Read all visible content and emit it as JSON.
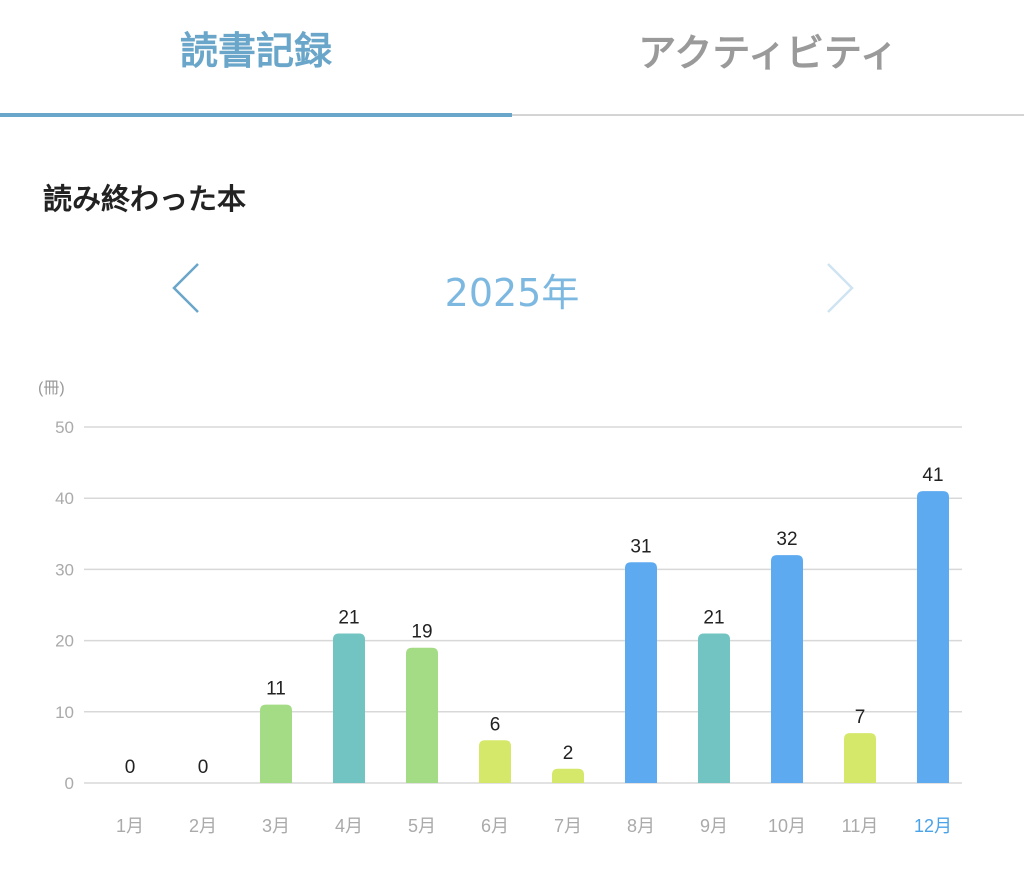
{
  "tabs": [
    {
      "label": "読書記録",
      "active": true
    },
    {
      "label": "アクティビティ",
      "active": false
    }
  ],
  "section_title": "読み終わった本",
  "year_nav": {
    "year_label": "2025年",
    "prev_icon": "chevron-left-icon",
    "next_icon": "chevron-right-icon"
  },
  "colors": {
    "accent": "#6aa6c9",
    "year": "#7db8e0",
    "green": "#a3dc85",
    "teal": "#72c4c2",
    "lime": "#d5e86a",
    "blue": "#5eaaf0",
    "highlight_label": "#4aa3e8"
  },
  "chart_data": {
    "type": "bar",
    "unit_label": "(冊)",
    "categories": [
      "1月",
      "2月",
      "3月",
      "4月",
      "5月",
      "6月",
      "7月",
      "8月",
      "9月",
      "10月",
      "11月",
      "12月"
    ],
    "values": [
      0,
      0,
      11,
      21,
      19,
      6,
      2,
      31,
      21,
      32,
      7,
      41
    ],
    "bar_colors": [
      "green",
      "green",
      "green",
      "teal",
      "green",
      "lime",
      "lime",
      "blue",
      "teal",
      "blue",
      "lime",
      "blue"
    ],
    "highlighted_category": "12月",
    "yticks": [
      0,
      10,
      20,
      30,
      40,
      50
    ],
    "ylim": [
      0,
      50
    ],
    "grid": true,
    "title": "",
    "xlabel": "",
    "ylabel": "(冊)"
  }
}
